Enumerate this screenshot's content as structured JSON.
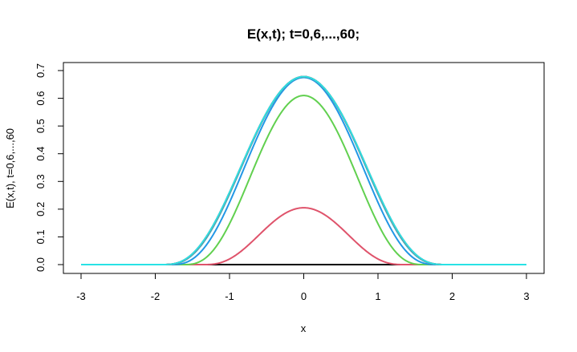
{
  "chart_data": {
    "type": "line",
    "title": "E(x,t); t=0,6,...,60;",
    "xlabel": "x",
    "ylabel": "E(x,t), t=0,6,...,60",
    "xlim": [
      -3,
      3
    ],
    "ylim": [
      0,
      0.7
    ],
    "xticks": [
      "-3",
      "-2",
      "-1",
      "0",
      "1",
      "2",
      "3"
    ],
    "yticks": [
      "0.0",
      "0.1",
      "0.2",
      "0.3",
      "0.4",
      "0.5",
      "0.6",
      "0.7"
    ],
    "grid": false,
    "legend": "none",
    "series": [
      {
        "color": "#000000",
        "peak": 0.0,
        "width": 1.0
      },
      {
        "color": "#df536b",
        "peak": 0.205,
        "width": 0.62
      },
      {
        "color": "#61d04f",
        "peak": 0.61,
        "width": 0.74
      },
      {
        "color": "#2297e6",
        "peak": 0.675,
        "width": 0.82
      },
      {
        "color": "#28e2e5",
        "peak": 0.678,
        "width": 0.86
      },
      {
        "color": "#cd0bbc",
        "peak": 0.678,
        "width": 0.865
      },
      {
        "color": "#f5c710",
        "peak": 0.678,
        "width": 0.867
      },
      {
        "color": "#9e9e9e",
        "peak": 0.678,
        "width": 0.868
      },
      {
        "color": "#000000",
        "peak": 0.678,
        "width": 0.869
      },
      {
        "color": "#df536b",
        "peak": 0.678,
        "width": 0.87
      },
      {
        "color": "#28e2e5",
        "peak": 0.678,
        "width": 0.87
      }
    ]
  }
}
